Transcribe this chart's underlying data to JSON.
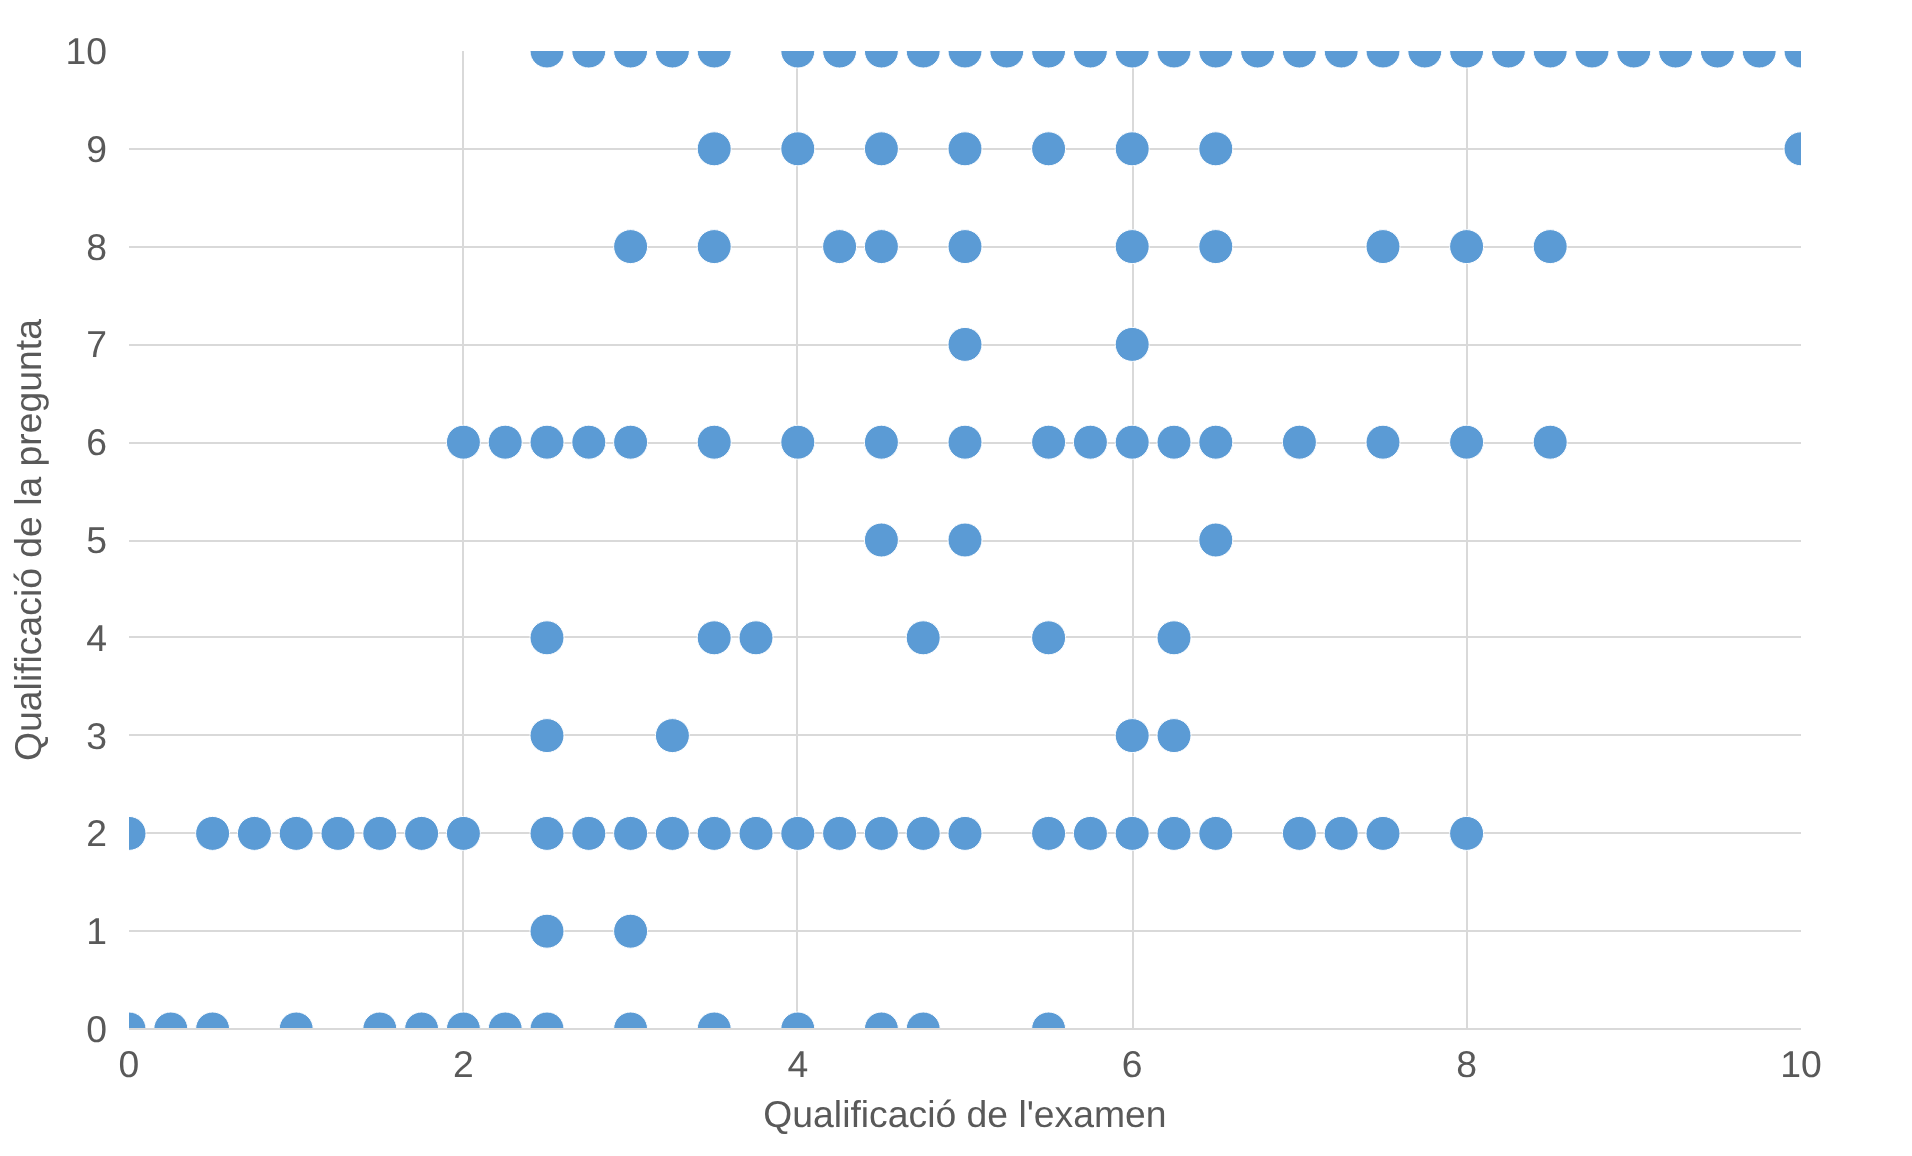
{
  "chart_data": {
    "type": "scatter",
    "xlabel": "Qualificació de l'examen",
    "ylabel": "Qualificació de la pregunta",
    "series": [
      {
        "color": "#5b9bd5",
        "x": [
          2.5,
          2.75,
          3,
          3.25,
          3.5,
          4,
          4.25,
          4.5,
          4.75,
          5,
          5.25,
          5.5,
          5.75,
          6,
          6.25,
          6.5,
          6.75,
          7,
          7.25,
          7.5,
          7.75,
          8,
          8.25,
          8.5,
          8.75,
          9,
          9.25,
          9.5,
          9.75,
          10,
          3.5,
          4,
          4.5,
          5,
          5.5,
          6,
          6.5,
          10,
          3,
          3.5,
          4.25,
          4.5,
          5,
          6,
          6.5,
          7.5,
          8,
          8.5,
          5,
          6,
          2,
          2.25,
          2.5,
          2.75,
          3,
          3.5,
          4,
          4.5,
          5,
          5.5,
          5.75,
          6,
          6.25,
          6.5,
          7,
          7.5,
          8,
          8.5,
          4.5,
          5,
          6.5,
          2.5,
          3.5,
          3.75,
          4.75,
          5.5,
          6.25,
          2.5,
          3.25,
          6,
          6.25,
          0,
          0.5,
          0.75,
          1,
          1.25,
          1.5,
          1.75,
          2,
          2.5,
          2.75,
          3,
          3.25,
          3.5,
          3.75,
          4,
          4.25,
          4.5,
          4.75,
          5,
          5.5,
          5.75,
          6,
          6.25,
          6.5,
          7,
          7.25,
          7.5,
          8,
          2.5,
          3,
          0,
          0.25,
          0.5,
          1,
          1.5,
          1.75,
          2,
          2.25,
          2.5,
          3,
          3.5,
          4,
          4.5,
          4.75,
          5.5
        ],
        "values": [
          10,
          10,
          10,
          10,
          10,
          10,
          10,
          10,
          10,
          10,
          10,
          10,
          10,
          10,
          10,
          10,
          10,
          10,
          10,
          10,
          10,
          10,
          10,
          10,
          10,
          10,
          10,
          10,
          10,
          10,
          9,
          9,
          9,
          9,
          9,
          9,
          9,
          9,
          8,
          8,
          8,
          8,
          8,
          8,
          8,
          8,
          8,
          8,
          7,
          7,
          6,
          6,
          6,
          6,
          6,
          6,
          6,
          6,
          6,
          6,
          6,
          6,
          6,
          6,
          6,
          6,
          6,
          6,
          5,
          5,
          5,
          4,
          4,
          4,
          4,
          4,
          4,
          3,
          3,
          3,
          3,
          2,
          2,
          2,
          2,
          2,
          2,
          2,
          2,
          2,
          2,
          2,
          2,
          2,
          2,
          2,
          2,
          2,
          2,
          2,
          2,
          2,
          2,
          2,
          2,
          2,
          2,
          2,
          2,
          1,
          1,
          0,
          0,
          0,
          0,
          0,
          0,
          0,
          0,
          0,
          0,
          0,
          0,
          0,
          0,
          0
        ]
      }
    ],
    "xlim": [
      0,
      10
    ],
    "ylim": [
      0,
      10
    ],
    "xticks": [
      0,
      2,
      4,
      6,
      8,
      10
    ],
    "yticks": [
      0,
      1,
      2,
      3,
      4,
      5,
      6,
      7,
      8,
      9,
      10
    ],
    "grid": true,
    "marker": "circle"
  }
}
